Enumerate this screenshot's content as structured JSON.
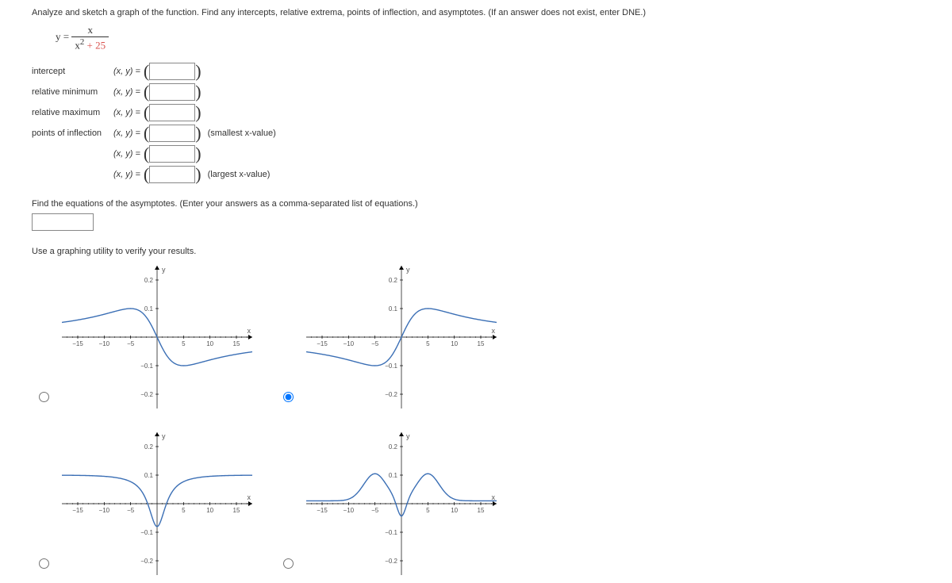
{
  "prompt": "Analyze and sketch a graph of the function. Find any intercepts, relative extrema, points of inflection, and asymptotes. (If an answer does not exist, enter DNE.)",
  "formula": {
    "lhs": "y =",
    "num": "x",
    "den_left": "x",
    "den_exp": "2",
    "den_right": " + 25"
  },
  "rows": {
    "intercept": {
      "label": "intercept",
      "xy": "(x, y) ="
    },
    "relmin": {
      "label": "relative minimum",
      "xy": "(x, y) ="
    },
    "relmax": {
      "label": "relative maximum",
      "xy": "(x, y) ="
    },
    "poi1": {
      "label": "points of inflection",
      "xy": "(x, y) =",
      "note": "(smallest x-value)"
    },
    "poi2": {
      "label": "",
      "xy": "(x, y) ="
    },
    "poi3": {
      "label": "",
      "xy": "(x, y) =",
      "note": "(largest x-value)"
    }
  },
  "asym_prompt": "Find the equations of the asymptotes. (Enter your answers as a comma-separated list of equations.)",
  "verify": "Use a graphing utility to verify your results.",
  "axis": {
    "y_label": "y",
    "x_label": "x",
    "x_ticks": [
      -15,
      -10,
      -5,
      5,
      10,
      15
    ],
    "y_ticks_pos": [
      0.1,
      0.2
    ],
    "y_ticks_neg": [
      -0.1,
      -0.2
    ],
    "xlim": [
      -18,
      18
    ],
    "ylim": [
      -0.25,
      0.25
    ],
    "color": "#000",
    "text_color": "#555"
  },
  "graphs": {
    "A": {
      "type": "s-curve",
      "neg_left": false,
      "reflect": true
    },
    "B": {
      "type": "s-curve",
      "neg_left": false,
      "reflect": false
    },
    "C": {
      "type": "v-curve"
    },
    "D": {
      "type": "w-curve"
    }
  },
  "selected": "B",
  "colors": {
    "curve": "#3b6fb5",
    "denom_highlight": "#d9534f"
  }
}
